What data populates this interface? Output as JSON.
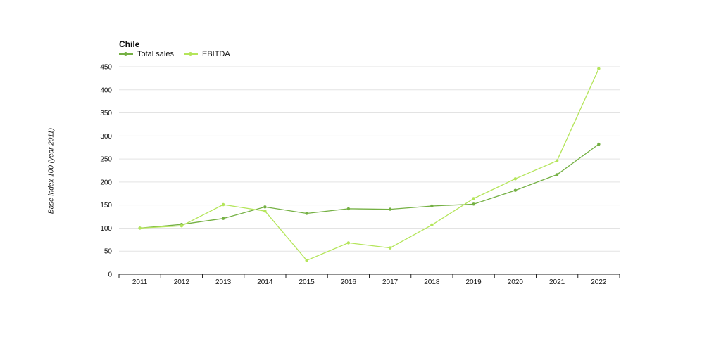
{
  "chart_data": {
    "type": "line",
    "title": "Chile",
    "ylabel": "Base index 100 (year 2011)",
    "xlabel": "",
    "categories": [
      "2011",
      "2012",
      "2013",
      "2014",
      "2015",
      "2016",
      "2017",
      "2018",
      "2019",
      "2020",
      "2021",
      "2022"
    ],
    "ylim": [
      0,
      450
    ],
    "yticks": [
      0,
      50,
      100,
      150,
      200,
      250,
      300,
      350,
      400,
      450
    ],
    "grid": true,
    "legend_position": "top-left",
    "series": [
      {
        "name": "Total sales",
        "color": "#74b043",
        "values": [
          100,
          108,
          121,
          146,
          132,
          142,
          141,
          148,
          152,
          182,
          216,
          282
        ]
      },
      {
        "name": "EBITDA",
        "color": "#b4e55a",
        "values": [
          100,
          105,
          151,
          137,
          30,
          68,
          57,
          107,
          164,
          207,
          246,
          446
        ]
      }
    ]
  }
}
